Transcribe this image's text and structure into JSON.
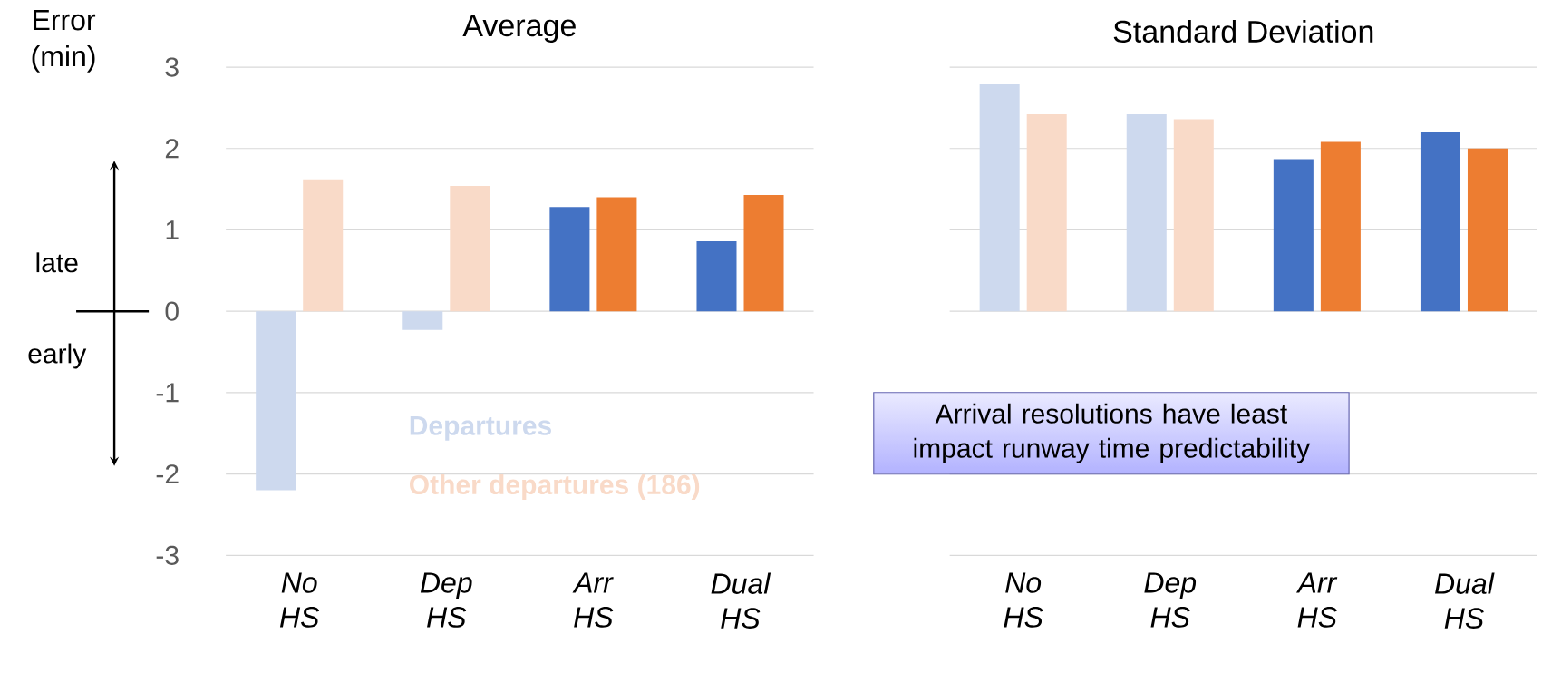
{
  "chart_data": [
    {
      "type": "bar",
      "title": "Average",
      "ylabel": "Error (min)",
      "categories": [
        "No HS",
        "Dep HS",
        "Arr HS",
        "Dual HS"
      ],
      "series": [
        {
          "name": "Departures",
          "colors": [
            "#cdd9ee",
            "#cdd9ee",
            "#4472c4",
            "#4472c4"
          ],
          "values": [
            -2.2,
            -0.23,
            1.28,
            0.86
          ]
        },
        {
          "name": "Other departures (186)",
          "colors": [
            "#f9dac8",
            "#f9dac8",
            "#ed7d31",
            "#ed7d31"
          ],
          "values": [
            1.62,
            1.54,
            1.4,
            1.43
          ]
        }
      ],
      "ylim": [
        -3,
        3
      ],
      "yticks": [
        -3,
        -2,
        -1,
        0,
        1,
        2,
        3
      ],
      "grid": "y",
      "legend": "bottom",
      "annotations": [
        "late",
        "early"
      ]
    },
    {
      "type": "bar",
      "title": "Standard Deviation",
      "categories": [
        "No HS",
        "Dep HS",
        "Arr HS",
        "Dual HS"
      ],
      "series": [
        {
          "colors": [
            "#cdd9ee",
            "#cdd9ee",
            "#4472c4",
            "#4472c4"
          ],
          "values": [
            2.79,
            2.42,
            1.87,
            2.21
          ]
        },
        {
          "colors": [
            "#f9dac8",
            "#f9dac8",
            "#ed7d31",
            "#ed7d31"
          ],
          "values": [
            2.42,
            2.36,
            2.08,
            2.0
          ]
        }
      ],
      "ylim": [
        -3,
        3
      ],
      "yticks": [
        -3,
        -2,
        -1,
        0,
        1,
        2,
        3
      ],
      "grid": "y",
      "tick_labels": "x",
      "annotations": [
        "Arrival resolutions have least impact runway time predictability"
      ]
    }
  ]
}
